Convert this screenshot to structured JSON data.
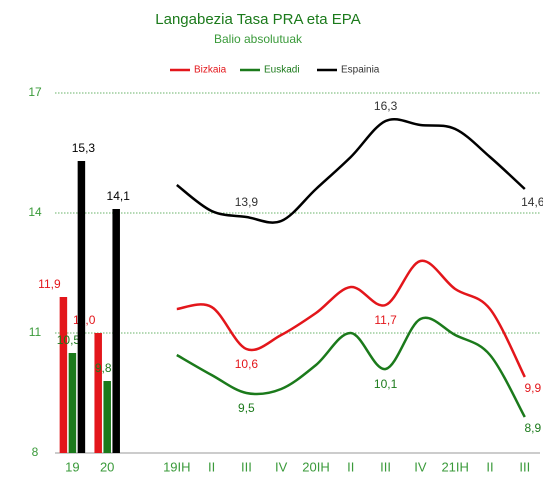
{
  "chart_data": {
    "type": "bar-line",
    "title": "Langabezia Tasa PRA eta EPA",
    "subtitle": "Balio absolutuak",
    "bar_categories": [
      "19",
      "20"
    ],
    "line_categories": [
      "19IH",
      "II",
      "III",
      "IV",
      "20IH",
      "II",
      "III",
      "IV",
      "21IH",
      "II",
      "III"
    ],
    "ylim": [
      8,
      17
    ],
    "yticks": [
      8,
      11,
      14,
      17
    ],
    "grid": true,
    "legend": "top",
    "series": [
      {
        "name": "Bizkaia",
        "color": "#e3161b",
        "bar_values": [
          11.9,
          11.0
        ],
        "bar_labels": [
          "11,9",
          "11,0"
        ],
        "line_values": [
          11.6,
          11.65,
          10.6,
          10.95,
          11.5,
          12.15,
          11.7,
          12.8,
          12.1,
          11.6,
          9.9
        ],
        "line_labels": [
          null,
          null,
          "10,6",
          null,
          null,
          null,
          "11,7",
          null,
          null,
          null,
          "9,9"
        ]
      },
      {
        "name": "Euskadi",
        "color": "#1b7a1b",
        "bar_values": [
          10.5,
          9.8
        ],
        "bar_labels": [
          "10,5",
          "9,8"
        ],
        "line_values": [
          10.45,
          9.95,
          9.5,
          9.6,
          10.2,
          11.0,
          10.1,
          11.35,
          10.95,
          10.45,
          8.9
        ],
        "line_labels": [
          null,
          null,
          "9,5",
          null,
          null,
          null,
          "10,1",
          null,
          null,
          null,
          "8,9"
        ]
      },
      {
        "name": "Espainia",
        "color": "#000000",
        "bar_values": [
          15.3,
          14.1
        ],
        "bar_labels": [
          "15,3",
          "14,1"
        ],
        "line_values": [
          14.7,
          14.05,
          13.9,
          13.8,
          14.6,
          15.4,
          16.3,
          16.2,
          16.1,
          15.4,
          14.6
        ],
        "line_labels": [
          null,
          null,
          "13,9",
          null,
          null,
          null,
          "16,3",
          null,
          null,
          null,
          "14,6"
        ]
      }
    ]
  }
}
